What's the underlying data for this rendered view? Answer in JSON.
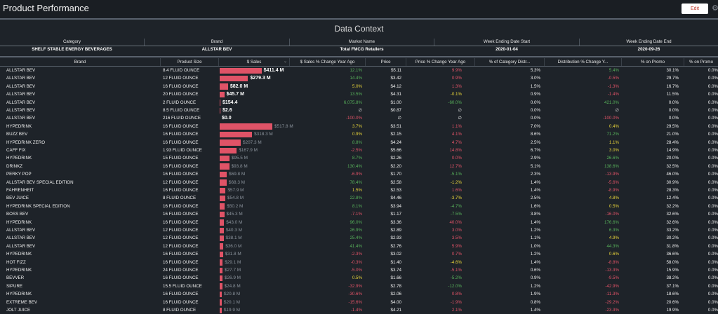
{
  "page": {
    "title": "Product Performance",
    "edit_label": "Edit",
    "settings_icon": "gear-icon"
  },
  "context": {
    "title": "Data Context",
    "headers": [
      "Category",
      "Brand",
      "Market Name",
      "Week Ending Date Start",
      "Week Ending Date End"
    ],
    "values": [
      "SHELF STABLE ENERGY BEVERAGES",
      "ALLSTAR BEV",
      "Total FMCG Retailers",
      "2020-01-04",
      "2020-09-26"
    ]
  },
  "table": {
    "headers": {
      "brand": "Brand",
      "size": "Product Size",
      "sales": "$ Sales",
      "sales_yago": "$ Sales % Change Year Ago",
      "price": "Price",
      "price_yago": "Price % Change Year Ago",
      "cat_dist": "% of Category Distr...",
      "dist_chg": "Distribution % Change Y...",
      "promo": "% on Promo",
      "promo2": "% on Promo"
    },
    "colors": {
      "bar": "#e05367",
      "positive": "#57b05a",
      "negative": "#e05367",
      "slight": "#e8d43a"
    },
    "rows": [
      {
        "brand": "ALLSTAR BEV",
        "size": "8.4 FLUID OUNCE",
        "sales": "$411.4 M",
        "sales_value": 411.4,
        "bold": true,
        "yago": "12.1%",
        "yago_t": "pos",
        "price": "$5.11",
        "pyago": "9.9%",
        "pyago_t": "neg",
        "cat": "5.3%",
        "dist": "5.4%",
        "dist_t": "pos",
        "promo": "30.1%",
        "promo2": "0.0%"
      },
      {
        "brand": "ALLSTAR BEV",
        "size": "12 FLUID OUNCE",
        "sales": "$279.3 M",
        "sales_value": 279.3,
        "bold": true,
        "yago": "14.4%",
        "yago_t": "pos",
        "price": "$3.42",
        "pyago": "0.9%",
        "pyago_t": "neg",
        "cat": "3.0%",
        "dist": "-0.5%",
        "dist_t": "neg",
        "promo": "29.7%",
        "promo2": "0.0%"
      },
      {
        "brand": "ALLSTAR BEV",
        "size": "16 FLUID OUNCE",
        "sales": "$82.0 M",
        "sales_value": 82.0,
        "bold": true,
        "yago": "5.0%",
        "yago_t": "mid",
        "price": "$4.12",
        "pyago": "1.3%",
        "pyago_t": "neg",
        "cat": "1.5%",
        "dist": "-1.3%",
        "dist_t": "neg",
        "promo": "16.7%",
        "promo2": "0.0%"
      },
      {
        "brand": "ALLSTAR BEV",
        "size": "20 FLUID OUNCE",
        "sales": "$45.7 M",
        "sales_value": 45.7,
        "bold": true,
        "yago": "13.5%",
        "yago_t": "pos",
        "price": "$4.31",
        "pyago": "-0.1%",
        "pyago_t": "mid",
        "cat": "0.9%",
        "dist": "-1.4%",
        "dist_t": "neg",
        "promo": "11.5%",
        "promo2": "0.0%"
      },
      {
        "brand": "ALLSTAR BEV",
        "size": "2 FLUID OUNCE",
        "sales": "$154.4",
        "sales_value": 0.0001544,
        "bold": true,
        "yago": "6,075.8%",
        "yago_t": "pos",
        "price": "$1.00",
        "pyago": "-60.0%",
        "pyago_t": "pos",
        "cat": "0.0%",
        "dist": "421.0%",
        "dist_t": "pos",
        "promo": "0.0%",
        "promo2": "0.0%"
      },
      {
        "brand": "ALLSTAR BEV",
        "size": "8.5 FLUID OUNCE",
        "sales": "$2.6",
        "sales_value": 2.6e-06,
        "bold": true,
        "yago": "∅",
        "yago_t": "neu",
        "price": "$0.87",
        "pyago": "∅",
        "pyago_t": "neu",
        "cat": "0.0%",
        "dist": "∅",
        "dist_t": "neu",
        "promo": "0.0%",
        "promo2": "0.0%"
      },
      {
        "brand": "ALLSTAR BEV",
        "size": "216 FLUID OUNCE",
        "sales": "$0.0",
        "sales_value": 0,
        "bold": true,
        "yago": "-100.0%",
        "yago_t": "neg",
        "price": "∅",
        "pyago": "∅",
        "pyago_t": "neu",
        "cat": "0.0%",
        "dist": "-100.0%",
        "dist_t": "neg",
        "promo": "0.0%",
        "promo2": "0.0%"
      },
      {
        "brand": "HYPEDRINK",
        "size": "16 FLUID OUNCE",
        "sales": "$517.8 M",
        "sales_value": 517.8,
        "bold": false,
        "yago": "3.7%",
        "yago_t": "mid",
        "price": "$3.51",
        "pyago": "1.1%",
        "pyago_t": "neg",
        "cat": "7.0%",
        "dist": "0.4%",
        "dist_t": "mid",
        "promo": "29.5%",
        "promo2": "0.0%"
      },
      {
        "brand": "BUZZ BEV",
        "size": "16 FLUID OUNCE",
        "sales": "$318.3 M",
        "sales_value": 318.3,
        "bold": false,
        "yago": "0.9%",
        "yago_t": "mid",
        "price": "$2.15",
        "pyago": "4.1%",
        "pyago_t": "neg",
        "cat": "8.6%",
        "dist": "71.2%",
        "dist_t": "pos",
        "promo": "21.0%",
        "promo2": "0.0%"
      },
      {
        "brand": "HYPEDRINK ZERO",
        "size": "16 FLUID OUNCE",
        "sales": "$207.3 M",
        "sales_value": 207.3,
        "bold": false,
        "yago": "8.8%",
        "yago_t": "pos",
        "price": "$4.24",
        "pyago": "4.7%",
        "pyago_t": "neg",
        "cat": "2.5%",
        "dist": "1.1%",
        "dist_t": "mid",
        "promo": "28.4%",
        "promo2": "0.0%"
      },
      {
        "brand": "CAFF FIX",
        "size": "1.93 FLUID OUNCE",
        "sales": "$167.9 M",
        "sales_value": 167.9,
        "bold": false,
        "yago": "-2.5%",
        "yago_t": "neg",
        "price": "$5.66",
        "pyago": "14.8%",
        "pyago_t": "neg",
        "cat": "6.7%",
        "dist": "3.0%",
        "dist_t": "mid",
        "promo": "14.9%",
        "promo2": "0.0%"
      },
      {
        "brand": "HYPEDRINK",
        "size": "15 FLUID OUNCE",
        "sales": "$95.5 M",
        "sales_value": 95.5,
        "bold": false,
        "yago": "8.7%",
        "yago_t": "pos",
        "price": "$2.26",
        "pyago": "0.0%",
        "pyago_t": "neg",
        "cat": "2.9%",
        "dist": "26.6%",
        "dist_t": "pos",
        "promo": "20.0%",
        "promo2": "0.0%"
      },
      {
        "brand": "DRINKZ",
        "size": "16 FLUID OUNCE",
        "sales": "$93.8 M",
        "sales_value": 93.8,
        "bold": false,
        "yago": "130.4%",
        "yago_t": "pos",
        "price": "$2.20",
        "pyago": "12.7%",
        "pyago_t": "neg",
        "cat": "5.1%",
        "dist": "138.6%",
        "dist_t": "pos",
        "promo": "32.5%",
        "promo2": "0.0%"
      },
      {
        "brand": "PERKY POP",
        "size": "16 FLUID OUNCE",
        "sales": "$69.8 M",
        "sales_value": 69.8,
        "bold": false,
        "yago": "-6.9%",
        "yago_t": "neg",
        "price": "$1.70",
        "pyago": "-5.1%",
        "pyago_t": "pos",
        "cat": "2.3%",
        "dist": "-13.9%",
        "dist_t": "neg",
        "promo": "46.0%",
        "promo2": "0.0%"
      },
      {
        "brand": "ALLSTAR BEV SPECIAL EDITION",
        "size": "12 FLUID OUNCE",
        "sales": "$68.3 M",
        "sales_value": 68.3,
        "bold": false,
        "yago": "78.4%",
        "yago_t": "pos",
        "price": "$2.58",
        "pyago": "-1.2%",
        "pyago_t": "mid",
        "cat": "1.4%",
        "dist": "-5.6%",
        "dist_t": "neg",
        "promo": "30.9%",
        "promo2": "0.0%"
      },
      {
        "brand": "FAHRENHEIT",
        "size": "16 FLUID OUNCE",
        "sales": "$57.9 M",
        "sales_value": 57.9,
        "bold": false,
        "yago": "1.5%",
        "yago_t": "mid",
        "price": "$2.53",
        "pyago": "1.6%",
        "pyago_t": "neg",
        "cat": "1.4%",
        "dist": "-8.9%",
        "dist_t": "neg",
        "promo": "28.3%",
        "promo2": "0.0%"
      },
      {
        "brand": "BEV JUICE",
        "size": "8 FLUID OUNCE",
        "sales": "$54.8 M",
        "sales_value": 54.8,
        "bold": false,
        "yago": "22.8%",
        "yago_t": "pos",
        "price": "$4.46",
        "pyago": "-3.7%",
        "pyago_t": "mid",
        "cat": "2.5%",
        "dist": "4.8%",
        "dist_t": "mid",
        "promo": "12.4%",
        "promo2": "0.0%"
      },
      {
        "brand": "HYPEDRINK SPECIAL EDITION",
        "size": "16 FLUID OUNCE",
        "sales": "$50.2 M",
        "sales_value": 50.2,
        "bold": false,
        "yago": "8.1%",
        "yago_t": "pos",
        "price": "$3.94",
        "pyago": "-4.7%",
        "pyago_t": "pos",
        "cat": "1.6%",
        "dist": "0.5%",
        "dist_t": "mid",
        "promo": "32.2%",
        "promo2": "0.0%"
      },
      {
        "brand": "BOSS BEV",
        "size": "16 FLUID OUNCE",
        "sales": "$45.3 M",
        "sales_value": 45.3,
        "bold": false,
        "yago": "-7.1%",
        "yago_t": "neg",
        "price": "$1.17",
        "pyago": "-7.5%",
        "pyago_t": "pos",
        "cat": "3.8%",
        "dist": "-16.0%",
        "dist_t": "neg",
        "promo": "32.6%",
        "promo2": "0.0%"
      },
      {
        "brand": "HYPEDRINK",
        "size": "16 FLUID OUNCE",
        "sales": "$43.0 M",
        "sales_value": 43.0,
        "bold": false,
        "yago": "96.0%",
        "yago_t": "pos",
        "price": "$3.36",
        "pyago": "40.0%",
        "pyago_t": "neg",
        "cat": "1.4%",
        "dist": "176.6%",
        "dist_t": "pos",
        "promo": "32.6%",
        "promo2": "0.0%"
      },
      {
        "brand": "ALLSTAR BEV",
        "size": "12 FLUID OUNCE",
        "sales": "$40.3 M",
        "sales_value": 40.3,
        "bold": false,
        "yago": "26.9%",
        "yago_t": "pos",
        "price": "$2.89",
        "pyago": "3.0%",
        "pyago_t": "neg",
        "cat": "1.2%",
        "dist": "6.3%",
        "dist_t": "pos",
        "promo": "33.2%",
        "promo2": "0.0%"
      },
      {
        "brand": "ALLSTAR BEV",
        "size": "12 FLUID OUNCE",
        "sales": "$38.1 M",
        "sales_value": 38.1,
        "bold": false,
        "yago": "25.4%",
        "yago_t": "pos",
        "price": "$2.93",
        "pyago": "3.5%",
        "pyago_t": "neg",
        "cat": "1.1%",
        "dist": "4.9%",
        "dist_t": "mid",
        "promo": "30.2%",
        "promo2": "0.0%"
      },
      {
        "brand": "ALLSTAR BEV",
        "size": "12 FLUID OUNCE",
        "sales": "$36.0 M",
        "sales_value": 36.0,
        "bold": false,
        "yago": "41.4%",
        "yago_t": "pos",
        "price": "$2.76",
        "pyago": "5.9%",
        "pyago_t": "neg",
        "cat": "1.0%",
        "dist": "44.3%",
        "dist_t": "pos",
        "promo": "31.8%",
        "promo2": "0.0%"
      },
      {
        "brand": "HYPEDRINK",
        "size": "16 FLUID OUNCE",
        "sales": "$31.8 M",
        "sales_value": 31.8,
        "bold": false,
        "yago": "-2.3%",
        "yago_t": "neg",
        "price": "$3.02",
        "pyago": "0.7%",
        "pyago_t": "neg",
        "cat": "1.2%",
        "dist": "0.6%",
        "dist_t": "mid",
        "promo": "36.6%",
        "promo2": "0.0%"
      },
      {
        "brand": "HOT FIZZ",
        "size": "16 FLUID OUNCE",
        "sales": "$29.1 M",
        "sales_value": 29.1,
        "bold": false,
        "yago": "-0.3%",
        "yago_t": "neg",
        "price": "$1.40",
        "pyago": "-4.6%",
        "pyago_t": "mid",
        "cat": "1.4%",
        "dist": "-8.8%",
        "dist_t": "neg",
        "promo": "58.0%",
        "promo2": "0.0%"
      },
      {
        "brand": "HYPEDRINK",
        "size": "24 FLUID OUNCE",
        "sales": "$27.7 M",
        "sales_value": 27.7,
        "bold": false,
        "yago": "-5.0%",
        "yago_t": "neg",
        "price": "$3.74",
        "pyago": "-5.1%",
        "pyago_t": "neg",
        "cat": "0.6%",
        "dist": "-13.3%",
        "dist_t": "neg",
        "promo": "15.9%",
        "promo2": "0.0%"
      },
      {
        "brand": "BEVVER",
        "size": "16 FLUID OUNCE",
        "sales": "$26.9 M",
        "sales_value": 26.9,
        "bold": false,
        "yago": "0.5%",
        "yago_t": "mid",
        "price": "$1.66",
        "pyago": "-5.2%",
        "pyago_t": "pos",
        "cat": "0.9%",
        "dist": "-9.5%",
        "dist_t": "neg",
        "promo": "38.2%",
        "promo2": "0.0%"
      },
      {
        "brand": "SIPURE",
        "size": "15.5 FLUID OUNCE",
        "sales": "$24.8 M",
        "sales_value": 24.8,
        "bold": false,
        "yago": "-32.9%",
        "yago_t": "neg",
        "price": "$2.78",
        "pyago": "-12.0%",
        "pyago_t": "pos",
        "cat": "1.2%",
        "dist": "-42.9%",
        "dist_t": "neg",
        "promo": "37.1%",
        "promo2": "0.0%"
      },
      {
        "brand": "HYPEDRINK",
        "size": "16 FLUID OUNCE",
        "sales": "$20.8 M",
        "sales_value": 20.8,
        "bold": false,
        "yago": "-30.6%",
        "yago_t": "neg",
        "price": "$2.06",
        "pyago": "0.8%",
        "pyago_t": "neg",
        "cat": "1.9%",
        "dist": "-11.3%",
        "dist_t": "neg",
        "promo": "18.6%",
        "promo2": "0.0%"
      },
      {
        "brand": "EXTREME BEV",
        "size": "16 FLUID OUNCE",
        "sales": "$20.1 M",
        "sales_value": 20.1,
        "bold": false,
        "yago": "-15.6%",
        "yago_t": "neg",
        "price": "$4.00",
        "pyago": "-1.9%",
        "pyago_t": "neg",
        "cat": "0.8%",
        "dist": "-29.2%",
        "dist_t": "neg",
        "promo": "20.6%",
        "promo2": "0.0%"
      },
      {
        "brand": "JOLT JUICE",
        "size": "8 FLUID OUNCE",
        "sales": "$19.9 M",
        "sales_value": 19.9,
        "bold": false,
        "yago": "-1.4%",
        "yago_t": "neg",
        "price": "$4.21",
        "pyago": "2.1%",
        "pyago_t": "neg",
        "cat": "1.4%",
        "dist": "-23.3%",
        "dist_t": "neg",
        "promo": "19.9%",
        "promo2": "0.0%"
      }
    ]
  }
}
